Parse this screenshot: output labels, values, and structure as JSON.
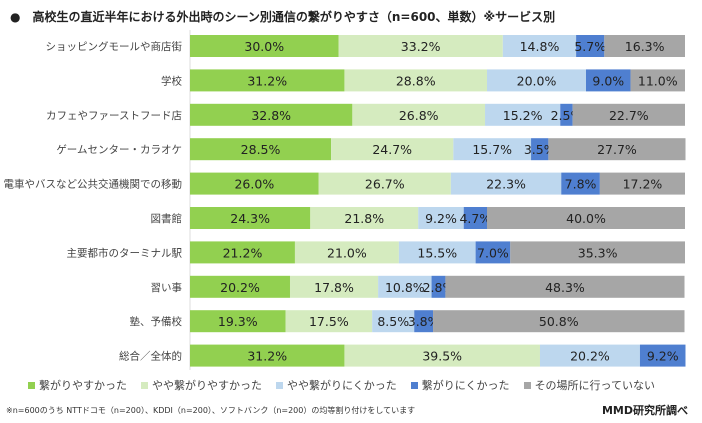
{
  "chart_data": {
    "type": "bar",
    "orientation": "horizontal",
    "stacked": true,
    "title": "●　高校生の直近半年における外出時のシーン別通信の繋がりやすさ（n=600、単数）※サービス別",
    "categories": [
      "ショッピングモールや商店街",
      "学校",
      "カフェやファーストフード店",
      "ゲームセンター・カラオケ",
      "電車やバスなど公共交通機関での移動",
      "図書館",
      "主要都市のターミナル駅",
      "習い事",
      "塾、予備校",
      "総合／全体的"
    ],
    "series": [
      {
        "name": "繋がりやすかった",
        "color": "#92d050",
        "values": [
          30.0,
          31.2,
          32.8,
          28.5,
          26.0,
          24.3,
          21.2,
          20.2,
          19.3,
          31.2
        ]
      },
      {
        "name": "やや繋がりやすかった",
        "color": "#d5ebbf",
        "values": [
          33.2,
          28.8,
          26.8,
          24.7,
          26.7,
          21.8,
          21.0,
          17.8,
          17.5,
          39.5
        ]
      },
      {
        "name": "やや繋がりにくかった",
        "color": "#bdd7ee",
        "values": [
          14.8,
          20.0,
          15.2,
          15.7,
          22.3,
          9.2,
          15.5,
          10.8,
          8.5,
          20.2
        ]
      },
      {
        "name": "繋がりにくかった",
        "color": "#4f7fd0",
        "values": [
          5.7,
          9.0,
          2.5,
          3.5,
          7.8,
          4.7,
          7.0,
          2.8,
          3.8,
          9.2
        ]
      },
      {
        "name": "その場所に行っていない",
        "color": "#a6a6a6",
        "values": [
          16.3,
          11.0,
          22.7,
          27.7,
          17.2,
          40.0,
          35.3,
          48.3,
          50.8,
          0
        ]
      }
    ],
    "xlim": [
      0,
      100
    ],
    "legend": "bottom",
    "grid": false
  },
  "note": "※n=600のうち NTTドコモ（n=200）、KDDI（n=200）、ソフトバンク（n=200）の均等割り付けをしています",
  "source": "MMD研究所調べ"
}
